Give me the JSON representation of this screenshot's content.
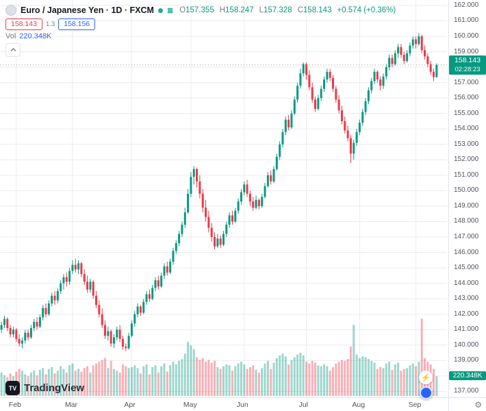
{
  "header": {
    "symbol_title": "Euro / Japanese Yen · 1D · FXCM",
    "ohlc": {
      "o_label": "O",
      "o": "157.355",
      "h_label": "H",
      "h": "158.247",
      "l_label": "L",
      "l": "157.328",
      "c_label": "C",
      "c": "158.143",
      "change": "+0.574 (+0.36%)"
    },
    "sell_price": "158.143",
    "spread": "1.3",
    "buy_price": "158.156",
    "vol_label": "Vol",
    "vol_value": "220.348K"
  },
  "axis": {
    "price_badge": {
      "price": "158.143",
      "countdown": "02:28:23"
    },
    "volume_badge": "220.348K",
    "gear_icon": "⚙"
  },
  "watermark": {
    "logo_text": "TV",
    "name": "TradingView"
  },
  "icons": {
    "bolt": "⚡",
    "list": "≣"
  },
  "colors": {
    "up": "#089981",
    "down": "#f23645",
    "vol_up": "rgba(8,153,129,0.4)",
    "vol_down": "rgba(242,54,69,0.4)",
    "grid": "#ececf0",
    "price_line": "#9598a1",
    "badge": "#089981",
    "buy_accent": "#2962ff",
    "sell_accent": "#f23645"
  },
  "chart_data": {
    "type": "candlestick+volume",
    "title": "Euro / Japanese Yen",
    "timeframe": "1D",
    "exchange": "FXCM",
    "last_open": 157.355,
    "last_high": 158.247,
    "last_low": 157.328,
    "last_close": 158.143,
    "last_change": 0.574,
    "last_change_pct": 0.36,
    "last_volume_k": 220.348,
    "y_tick_min": 137,
    "y_tick_max": 162,
    "y_tick_step": 1,
    "y_tick_decimals": 3,
    "y_range": [
      136.62,
      162.35
    ],
    "grid": true,
    "months": [
      {
        "label": "Feb",
        "idx": 5
      },
      {
        "label": "Mar",
        "idx": 24
      },
      {
        "label": "Apr",
        "idx": 44
      },
      {
        "label": "May",
        "idx": 64
      },
      {
        "label": "Jun",
        "idx": 82
      },
      {
        "label": "Jul",
        "idx": 103
      },
      {
        "label": "Aug",
        "idx": 121
      },
      {
        "label": "Sep",
        "idx": 140
      }
    ],
    "candles_format": [
      "open",
      "high",
      "low",
      "close",
      "volume_k"
    ],
    "candles": [
      [
        141.0,
        141.5,
        140.8,
        141.3,
        260
      ],
      [
        141.3,
        141.9,
        141.1,
        141.7,
        230
      ],
      [
        141.7,
        141.8,
        140.9,
        141.1,
        210
      ],
      [
        141.1,
        141.3,
        140.5,
        140.7,
        250
      ],
      [
        140.7,
        141.2,
        140.5,
        141.0,
        220
      ],
      [
        141.0,
        141.1,
        140.2,
        140.4,
        270
      ],
      [
        140.4,
        140.7,
        139.9,
        140.1,
        300
      ],
      [
        140.1,
        140.5,
        139.8,
        140.3,
        280
      ],
      [
        140.3,
        141.0,
        140.1,
        140.8,
        240
      ],
      [
        140.8,
        141.0,
        140.3,
        140.5,
        220
      ],
      [
        140.5,
        141.3,
        140.4,
        141.1,
        260
      ],
      [
        141.1,
        141.7,
        140.9,
        141.5,
        280
      ],
      [
        141.5,
        141.8,
        141.0,
        141.2,
        230
      ],
      [
        141.2,
        142.0,
        141.1,
        141.8,
        290
      ],
      [
        141.8,
        142.6,
        141.6,
        142.4,
        310
      ],
      [
        142.4,
        142.7,
        141.8,
        142.0,
        240
      ],
      [
        142.0,
        142.9,
        141.9,
        142.7,
        300
      ],
      [
        142.7,
        143.4,
        142.5,
        143.2,
        320
      ],
      [
        143.2,
        143.5,
        142.6,
        142.9,
        250
      ],
      [
        142.9,
        143.7,
        142.7,
        143.5,
        280
      ],
      [
        143.5,
        144.2,
        143.3,
        144.0,
        330
      ],
      [
        144.0,
        144.6,
        143.6,
        144.4,
        300
      ],
      [
        144.4,
        144.7,
        143.8,
        144.1,
        260
      ],
      [
        144.1,
        145.0,
        143.9,
        144.8,
        340
      ],
      [
        144.8,
        145.5,
        144.6,
        145.2,
        360
      ],
      [
        145.2,
        145.6,
        144.7,
        144.9,
        280
      ],
      [
        144.9,
        145.5,
        144.6,
        145.3,
        300
      ],
      [
        145.3,
        145.4,
        144.4,
        144.6,
        270
      ],
      [
        144.6,
        144.9,
        143.9,
        144.1,
        310
      ],
      [
        144.1,
        144.5,
        143.4,
        143.6,
        330
      ],
      [
        143.6,
        144.3,
        143.4,
        144.1,
        260
      ],
      [
        144.1,
        144.2,
        143.0,
        143.2,
        340
      ],
      [
        143.2,
        143.5,
        142.4,
        142.6,
        360
      ],
      [
        142.6,
        142.9,
        141.8,
        142.0,
        380
      ],
      [
        142.0,
        142.4,
        141.1,
        141.3,
        400
      ],
      [
        141.3,
        141.6,
        140.4,
        140.6,
        420
      ],
      [
        140.6,
        141.2,
        140.3,
        140.9,
        310
      ],
      [
        140.9,
        141.0,
        139.9,
        140.1,
        390
      ],
      [
        140.1,
        140.7,
        139.8,
        140.5,
        300
      ],
      [
        140.5,
        141.2,
        140.3,
        141.0,
        280
      ],
      [
        141.0,
        141.3,
        140.2,
        140.4,
        260
      ],
      [
        140.4,
        140.6,
        139.7,
        139.9,
        350
      ],
      [
        139.9,
        140.1,
        139.6,
        139.8,
        330
      ],
      [
        139.8,
        140.8,
        139.7,
        140.6,
        310
      ],
      [
        140.6,
        141.6,
        140.5,
        141.4,
        320
      ],
      [
        141.4,
        142.2,
        141.2,
        142.0,
        340
      ],
      [
        142.0,
        142.7,
        141.8,
        142.5,
        310
      ],
      [
        142.5,
        142.6,
        141.9,
        142.1,
        250
      ],
      [
        142.1,
        143.0,
        142.0,
        142.8,
        330
      ],
      [
        142.8,
        143.5,
        142.6,
        143.3,
        350
      ],
      [
        143.3,
        143.6,
        142.8,
        143.0,
        240
      ],
      [
        143.0,
        143.9,
        142.9,
        143.7,
        320
      ],
      [
        143.7,
        144.4,
        143.5,
        144.2,
        340
      ],
      [
        144.2,
        144.5,
        143.6,
        143.8,
        260
      ],
      [
        143.8,
        144.7,
        143.7,
        144.5,
        330
      ],
      [
        144.5,
        145.3,
        144.3,
        145.1,
        360
      ],
      [
        145.1,
        145.4,
        144.5,
        144.7,
        270
      ],
      [
        144.7,
        145.6,
        144.6,
        145.4,
        340
      ],
      [
        145.4,
        146.3,
        145.2,
        146.1,
        380
      ],
      [
        146.1,
        146.8,
        145.9,
        146.6,
        350
      ],
      [
        146.6,
        147.4,
        146.4,
        147.2,
        390
      ],
      [
        147.2,
        148.0,
        147.0,
        147.8,
        410
      ],
      [
        147.8,
        148.9,
        147.6,
        148.6,
        470
      ],
      [
        148.6,
        150.1,
        148.5,
        149.8,
        600
      ],
      [
        149.8,
        151.2,
        149.6,
        150.9,
        560
      ],
      [
        150.9,
        151.6,
        150.4,
        151.4,
        520
      ],
      [
        151.4,
        151.5,
        150.2,
        150.6,
        430
      ],
      [
        150.6,
        151.0,
        149.5,
        149.8,
        400
      ],
      [
        149.8,
        150.1,
        148.6,
        148.9,
        420
      ],
      [
        148.9,
        149.4,
        148.0,
        148.3,
        380
      ],
      [
        148.3,
        148.7,
        147.3,
        147.6,
        400
      ],
      [
        147.6,
        147.9,
        146.7,
        147.0,
        370
      ],
      [
        147.0,
        147.3,
        146.2,
        146.4,
        390
      ],
      [
        146.4,
        147.2,
        146.3,
        146.9,
        320
      ],
      [
        146.9,
        147.1,
        146.3,
        146.5,
        300
      ],
      [
        146.5,
        147.4,
        146.4,
        147.2,
        330
      ],
      [
        147.2,
        148.0,
        147.0,
        147.8,
        350
      ],
      [
        147.8,
        148.6,
        147.6,
        148.4,
        340
      ],
      [
        148.4,
        148.7,
        147.8,
        148.0,
        280
      ],
      [
        148.0,
        148.9,
        147.9,
        148.7,
        330
      ],
      [
        148.7,
        149.5,
        148.5,
        149.3,
        360
      ],
      [
        149.3,
        150.1,
        149.1,
        149.9,
        380
      ],
      [
        149.9,
        150.6,
        149.7,
        150.4,
        350
      ],
      [
        150.4,
        150.7,
        149.6,
        149.8,
        300
      ],
      [
        149.8,
        150.0,
        149.0,
        149.3,
        320
      ],
      [
        149.3,
        149.6,
        148.7,
        148.9,
        340
      ],
      [
        148.9,
        149.7,
        148.8,
        149.4,
        290
      ],
      [
        149.4,
        149.5,
        148.8,
        149.0,
        260
      ],
      [
        149.0,
        149.8,
        148.9,
        149.6,
        310
      ],
      [
        149.6,
        150.5,
        149.5,
        150.3,
        360
      ],
      [
        150.3,
        151.2,
        150.2,
        151.0,
        390
      ],
      [
        151.0,
        151.3,
        150.4,
        150.6,
        300
      ],
      [
        150.6,
        151.6,
        150.5,
        151.4,
        370
      ],
      [
        151.4,
        152.4,
        151.3,
        152.2,
        420
      ],
      [
        152.2,
        153.2,
        152.0,
        153.0,
        450
      ],
      [
        153.0,
        154.0,
        152.8,
        153.8,
        470
      ],
      [
        153.8,
        154.8,
        153.6,
        154.6,
        440
      ],
      [
        154.6,
        154.9,
        153.9,
        154.1,
        350
      ],
      [
        154.1,
        155.2,
        154.0,
        155.0,
        400
      ],
      [
        155.0,
        156.1,
        154.9,
        155.9,
        430
      ],
      [
        155.9,
        157.0,
        155.7,
        156.8,
        460
      ],
      [
        156.8,
        157.9,
        156.6,
        157.6,
        480
      ],
      [
        157.6,
        158.3,
        157.4,
        158.2,
        450
      ],
      [
        158.2,
        158.3,
        157.2,
        157.5,
        380
      ],
      [
        157.5,
        157.8,
        156.5,
        156.7,
        360
      ],
      [
        156.7,
        157.0,
        155.7,
        155.9,
        390
      ],
      [
        155.9,
        156.1,
        155.1,
        155.3,
        370
      ],
      [
        155.3,
        156.2,
        155.2,
        156.0,
        340
      ],
      [
        156.0,
        156.8,
        155.8,
        156.6,
        330
      ],
      [
        156.6,
        157.4,
        156.4,
        157.2,
        350
      ],
      [
        157.2,
        157.9,
        157.0,
        157.7,
        330
      ],
      [
        157.7,
        157.9,
        157.1,
        157.3,
        280
      ],
      [
        157.3,
        157.5,
        156.4,
        156.6,
        320
      ],
      [
        156.6,
        156.8,
        155.7,
        155.9,
        360
      ],
      [
        155.9,
        156.2,
        155.0,
        155.2,
        380
      ],
      [
        155.2,
        155.5,
        154.3,
        154.5,
        400
      ],
      [
        154.5,
        154.8,
        153.7,
        153.9,
        390
      ],
      [
        153.9,
        154.2,
        153.2,
        153.4,
        410
      ],
      [
        153.4,
        153.6,
        151.8,
        152.4,
        550
      ],
      [
        152.4,
        153.3,
        152.0,
        153.1,
        790
      ],
      [
        153.1,
        154.0,
        152.9,
        153.8,
        460
      ],
      [
        153.8,
        154.6,
        153.6,
        154.4,
        420
      ],
      [
        154.4,
        155.3,
        154.2,
        155.1,
        440
      ],
      [
        155.1,
        156.0,
        154.9,
        155.8,
        430
      ],
      [
        155.8,
        156.7,
        155.6,
        156.5,
        410
      ],
      [
        156.5,
        157.3,
        156.3,
        157.1,
        390
      ],
      [
        157.1,
        157.9,
        156.9,
        157.7,
        370
      ],
      [
        157.7,
        157.8,
        157.0,
        157.2,
        300
      ],
      [
        157.2,
        157.4,
        156.5,
        156.8,
        320
      ],
      [
        156.8,
        157.6,
        156.6,
        157.4,
        310
      ],
      [
        157.4,
        158.2,
        157.2,
        158.0,
        360
      ],
      [
        158.0,
        158.8,
        157.8,
        158.6,
        380
      ],
      [
        158.6,
        158.8,
        158.0,
        158.2,
        290
      ],
      [
        158.2,
        159.1,
        158.1,
        158.9,
        350
      ],
      [
        158.9,
        159.5,
        158.6,
        159.3,
        370
      ],
      [
        159.3,
        159.5,
        158.6,
        158.8,
        280
      ],
      [
        158.8,
        159.0,
        158.2,
        158.4,
        300
      ],
      [
        158.4,
        159.1,
        158.3,
        158.9,
        310
      ],
      [
        158.9,
        159.6,
        158.7,
        159.4,
        340
      ],
      [
        159.4,
        160.0,
        159.2,
        159.8,
        360
      ],
      [
        159.8,
        160.0,
        159.2,
        159.5,
        330
      ],
      [
        159.5,
        160.2,
        159.4,
        160.0,
        380
      ],
      [
        160.0,
        160.1,
        158.9,
        159.1,
        860
      ],
      [
        159.1,
        159.4,
        158.5,
        158.7,
        420
      ],
      [
        158.7,
        158.9,
        158.0,
        158.2,
        380
      ],
      [
        158.2,
        158.4,
        157.5,
        157.7,
        350
      ],
      [
        157.7,
        157.9,
        157.1,
        157.355,
        300
      ],
      [
        157.355,
        158.247,
        157.328,
        158.143,
        220.348
      ]
    ]
  }
}
